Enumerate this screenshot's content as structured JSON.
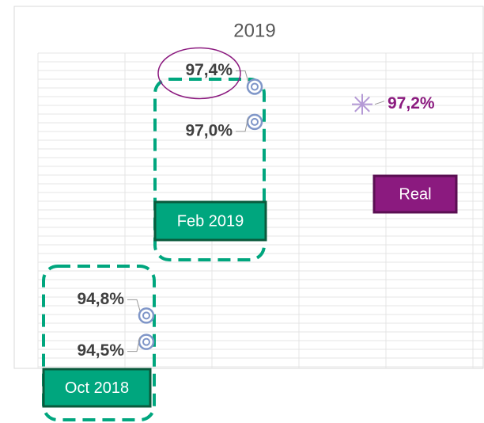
{
  "chart_data": {
    "type": "scatter",
    "title": "2019",
    "series": [
      {
        "name": "Oct 2018",
        "color": "#00a67e",
        "marker": "circle",
        "values": [
          94.8,
          94.5
        ],
        "value_labels": [
          "94,8%",
          "94,5%"
        ]
      },
      {
        "name": "Feb 2019",
        "color": "#00a67e",
        "marker": "circle",
        "values": [
          97.4,
          97.0
        ],
        "value_labels": [
          "97,4%",
          "97,0%"
        ]
      },
      {
        "name": "Real",
        "color": "#8b1a7f",
        "marker": "star",
        "values": [
          97.2
        ],
        "value_labels": [
          "97,2%"
        ]
      }
    ],
    "ylim": [
      94.2,
      97.8
    ],
    "grid": true
  }
}
